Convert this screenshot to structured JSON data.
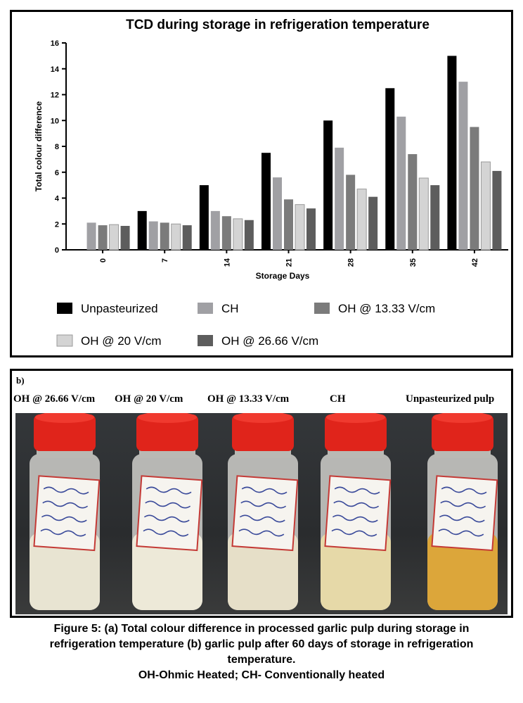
{
  "chart_data": {
    "type": "bar",
    "title": "TCD during storage in refrigeration temperature",
    "xlabel": "Storage Days",
    "ylabel": "Total colour difference",
    "ylim": [
      0,
      16
    ],
    "yticks": [
      "0",
      "2",
      "4",
      "6",
      "8",
      "10",
      "12",
      "14",
      "16"
    ],
    "categories": [
      "0",
      "7",
      "14",
      "21",
      "28",
      "35",
      "42"
    ],
    "legend_position": "bottom",
    "series": [
      {
        "name": "Unpasteurized",
        "color": "#000000",
        "values": [
          null,
          3.0,
          5.0,
          7.5,
          10.0,
          12.5,
          15.0
        ]
      },
      {
        "name": "CH",
        "color": "#a0a0a4",
        "values": [
          2.1,
          2.2,
          3.0,
          5.6,
          7.9,
          10.3,
          13.0
        ]
      },
      {
        "name": "OH @ 13.33 V/cm",
        "color": "#7b7b7b",
        "values": [
          1.9,
          2.1,
          2.6,
          3.9,
          5.8,
          7.4,
          9.5
        ]
      },
      {
        "name": "OH @ 20 V/cm",
        "color": "#d4d4d4",
        "values": [
          1.95,
          2.0,
          2.4,
          3.5,
          4.7,
          5.55,
          6.8
        ]
      },
      {
        "name": "OH @ 26.66 V/cm",
        "color": "#5d5d5d",
        "values": [
          1.85,
          1.9,
          2.3,
          3.2,
          4.1,
          5.0,
          6.1
        ]
      }
    ]
  },
  "photo": {
    "panel_label": "b)",
    "labels": [
      "OH @ 26.66 V/cm",
      "OH @ 20  V/cm",
      "OH @ 13.33 V/cm",
      "CH",
      "Unpasteurized pulp"
    ],
    "jars": [
      {
        "name": "oh-26-66",
        "content_color": "#e8e4d2"
      },
      {
        "name": "oh-20",
        "content_color": "#ede9d8"
      },
      {
        "name": "oh-13-33",
        "content_color": "#e6dfc8"
      },
      {
        "name": "ch",
        "content_color": "#e6d9a8"
      },
      {
        "name": "unpasteurized",
        "content_color": "#dca63a"
      }
    ],
    "cap_color": "#e0241b"
  },
  "caption": {
    "line1": "Figure 5: (a) Total colour difference in processed garlic pulp during storage in",
    "line2": "refrigeration temperature (b) garlic pulp after 60 days of storage in refrigeration",
    "line3": "temperature.",
    "line4": "OH-Ohmic Heated; CH- Conventionally heated"
  }
}
